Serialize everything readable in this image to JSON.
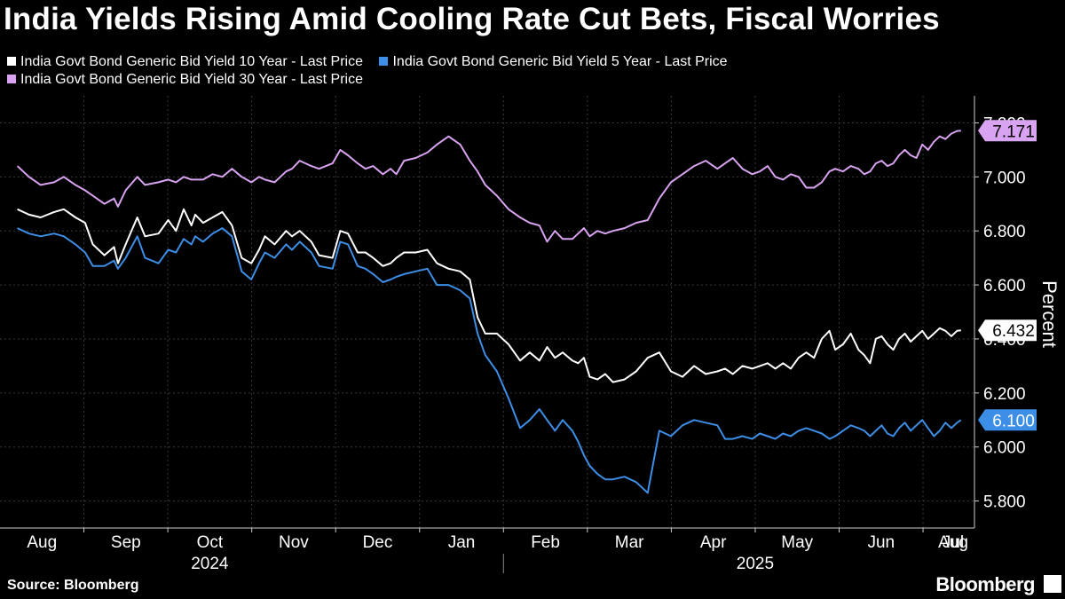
{
  "title": "India Yields Rising Amid Cooling Rate Cut Bets, Fiscal Worries",
  "source": "Source: Bloomberg",
  "brand": "Bloomberg",
  "chart_data": {
    "type": "line",
    "ylabel": "Percent",
    "ylim": [
      5.7,
      7.3
    ],
    "yticks": [
      5.8,
      6.0,
      6.2,
      6.4,
      6.6,
      6.8,
      7.0,
      7.2
    ],
    "ytick_labels": [
      "5.800",
      "6.000",
      "6.200",
      "6.400",
      "6.600",
      "6.800",
      "7.000",
      "7.200"
    ],
    "months": [
      "Aug",
      "Sep",
      "Oct",
      "Nov",
      "Dec",
      "Jan",
      "Feb",
      "Mar",
      "Apr",
      "May",
      "Jun",
      "Jul",
      "Aug"
    ],
    "years": [
      "2024",
      "2025"
    ],
    "grid": true,
    "series": [
      {
        "name": "India Govt Bond Generic Bid Yield 10 Year - Last Price",
        "color": "#ffffff",
        "last_value_label": "6.432",
        "t": [
          0,
          0.6,
          1.2,
          1.9,
          2.4,
          3.0,
          3.5,
          3.9,
          4.5,
          5.0,
          5.2,
          5.6,
          6.2,
          6.6,
          7.3,
          7.8,
          8.2,
          8.6,
          9.0,
          9.2,
          9.6,
          10.1,
          10.6,
          11.1,
          11.6,
          12.1,
          12.5,
          12.8,
          13.3,
          13.9,
          14.2,
          14.6,
          15.2,
          15.6,
          16.3,
          16.7,
          17.1,
          17.6,
          18.0,
          18.4,
          18.9,
          19.3,
          19.6,
          20.0,
          20.6,
          21.2,
          21.7,
          22.3,
          22.9,
          23.4,
          23.8,
          24.2,
          24.8,
          25.4,
          26.0,
          26.5,
          27.0,
          27.4,
          27.8,
          28.2,
          28.7,
          29.0,
          29.3,
          29.6,
          30.0,
          30.4,
          30.8,
          31.4,
          32.0,
          32.6,
          33.2,
          33.8,
          34.4,
          35.0,
          35.6,
          36.2,
          36.6,
          37.0,
          37.5,
          38.0,
          38.4,
          38.8,
          39.2,
          39.6,
          40.0,
          40.4,
          40.8,
          41.2,
          41.6,
          42.0,
          42.3,
          42.7,
          43.1,
          43.5,
          43.8,
          44.1,
          44.4,
          44.7,
          45.0,
          45.3,
          45.6,
          45.9,
          46.2,
          46.5,
          46.8,
          47.1,
          47.4,
          47.7,
          48.0,
          48.3,
          48.6,
          48.8
        ],
        "values": [
          6.88,
          6.86,
          6.85,
          6.87,
          6.88,
          6.85,
          6.83,
          6.75,
          6.71,
          6.74,
          6.68,
          6.75,
          6.85,
          6.78,
          6.79,
          6.84,
          6.8,
          6.88,
          6.82,
          6.86,
          6.83,
          6.85,
          6.87,
          6.82,
          6.7,
          6.68,
          6.73,
          6.78,
          6.75,
          6.8,
          6.78,
          6.8,
          6.76,
          6.71,
          6.7,
          6.8,
          6.79,
          6.72,
          6.72,
          6.7,
          6.67,
          6.68,
          6.7,
          6.72,
          6.72,
          6.73,
          6.68,
          6.66,
          6.65,
          6.62,
          6.48,
          6.42,
          6.42,
          6.38,
          6.32,
          6.35,
          6.32,
          6.37,
          6.33,
          6.35,
          6.32,
          6.31,
          6.33,
          6.26,
          6.25,
          6.27,
          6.24,
          6.25,
          6.28,
          6.33,
          6.35,
          6.28,
          6.26,
          6.3,
          6.27,
          6.28,
          6.29,
          6.27,
          6.3,
          6.29,
          6.3,
          6.31,
          6.29,
          6.31,
          6.29,
          6.33,
          6.35,
          6.33,
          6.4,
          6.43,
          6.36,
          6.38,
          6.42,
          6.36,
          6.34,
          6.31,
          6.4,
          6.41,
          6.38,
          6.36,
          6.4,
          6.42,
          6.39,
          6.41,
          6.43,
          6.4,
          6.42,
          6.44,
          6.43,
          6.41,
          6.43,
          6.432
        ]
      },
      {
        "name": "India Govt Bond Generic Bid Yield 5 Year - Last Price",
        "color": "#3d8ee6",
        "last_value_label": "6.100",
        "t": [
          0,
          0.6,
          1.2,
          1.9,
          2.4,
          3.0,
          3.5,
          3.9,
          4.5,
          5.0,
          5.2,
          5.6,
          6.2,
          6.6,
          7.3,
          7.8,
          8.2,
          8.6,
          9.0,
          9.2,
          9.6,
          10.1,
          10.6,
          11.1,
          11.6,
          12.1,
          12.5,
          12.8,
          13.3,
          13.9,
          14.2,
          14.6,
          15.2,
          15.6,
          16.3,
          16.7,
          17.1,
          17.6,
          18.0,
          18.4,
          18.9,
          19.3,
          19.6,
          20.0,
          20.6,
          21.2,
          21.7,
          22.3,
          22.9,
          23.4,
          23.8,
          24.2,
          24.8,
          25.4,
          26.0,
          26.5,
          27.0,
          27.4,
          27.8,
          28.2,
          28.7,
          29.0,
          29.3,
          29.6,
          30.0,
          30.4,
          30.8,
          31.4,
          32.0,
          32.6,
          33.2,
          33.8,
          34.4,
          35.0,
          35.6,
          36.2,
          36.6,
          37.0,
          37.5,
          38.0,
          38.4,
          38.8,
          39.2,
          39.6,
          40.0,
          40.4,
          40.8,
          41.2,
          41.6,
          42.0,
          42.3,
          42.7,
          43.1,
          43.5,
          43.8,
          44.1,
          44.4,
          44.7,
          45.0,
          45.3,
          45.6,
          45.9,
          46.2,
          46.5,
          46.8,
          47.1,
          47.4,
          47.7,
          48.0,
          48.3,
          48.6,
          48.8
        ],
        "values": [
          6.81,
          6.79,
          6.78,
          6.79,
          6.78,
          6.75,
          6.72,
          6.67,
          6.67,
          6.69,
          6.66,
          6.7,
          6.78,
          6.7,
          6.68,
          6.73,
          6.72,
          6.77,
          6.75,
          6.78,
          6.76,
          6.79,
          6.81,
          6.78,
          6.65,
          6.62,
          6.68,
          6.72,
          6.7,
          6.75,
          6.73,
          6.76,
          6.72,
          6.67,
          6.66,
          6.76,
          6.75,
          6.67,
          6.66,
          6.64,
          6.61,
          6.62,
          6.63,
          6.64,
          6.65,
          6.66,
          6.6,
          6.6,
          6.58,
          6.55,
          6.42,
          6.34,
          6.28,
          6.18,
          6.07,
          6.1,
          6.14,
          6.1,
          6.06,
          6.1,
          6.06,
          6.02,
          5.97,
          5.93,
          5.9,
          5.88,
          5.88,
          5.89,
          5.87,
          5.83,
          6.06,
          6.04,
          6.08,
          6.1,
          6.09,
          6.08,
          6.03,
          6.03,
          6.04,
          6.03,
          6.05,
          6.04,
          6.03,
          6.05,
          6.04,
          6.06,
          6.07,
          6.06,
          6.05,
          6.03,
          6.04,
          6.06,
          6.08,
          6.07,
          6.06,
          6.04,
          6.06,
          6.08,
          6.05,
          6.04,
          6.07,
          6.09,
          6.06,
          6.08,
          6.1,
          6.07,
          6.04,
          6.06,
          6.09,
          6.07,
          6.09,
          6.1
        ]
      },
      {
        "name": "India Govt Bond Generic Bid Yield 30 Year - Last Price",
        "color": "#d8a3f0",
        "last_value_label": "7.171",
        "t": [
          0,
          0.6,
          1.2,
          1.9,
          2.4,
          3.0,
          3.5,
          3.9,
          4.5,
          5.0,
          5.2,
          5.6,
          6.2,
          6.6,
          7.3,
          7.8,
          8.2,
          8.6,
          9.0,
          9.2,
          9.6,
          10.1,
          10.6,
          11.1,
          11.6,
          12.1,
          12.5,
          12.8,
          13.3,
          13.9,
          14.2,
          14.6,
          15.2,
          15.6,
          16.3,
          16.7,
          17.1,
          17.6,
          18.0,
          18.4,
          18.9,
          19.3,
          19.6,
          20.0,
          20.6,
          21.2,
          21.7,
          22.3,
          22.9,
          23.4,
          23.8,
          24.2,
          24.8,
          25.4,
          26.0,
          26.5,
          27.0,
          27.4,
          27.8,
          28.2,
          28.7,
          29.0,
          29.3,
          29.6,
          30.0,
          30.4,
          30.8,
          31.4,
          32.0,
          32.6,
          33.2,
          33.8,
          34.4,
          35.0,
          35.6,
          36.2,
          36.6,
          37.0,
          37.5,
          38.0,
          38.4,
          38.8,
          39.2,
          39.6,
          40.0,
          40.4,
          40.8,
          41.2,
          41.6,
          42.0,
          42.3,
          42.7,
          43.1,
          43.5,
          43.8,
          44.1,
          44.4,
          44.7,
          45.0,
          45.3,
          45.6,
          45.9,
          46.2,
          46.5,
          46.8,
          47.1,
          47.4,
          47.7,
          48.0,
          48.3,
          48.6,
          48.8
        ],
        "values": [
          7.04,
          7.0,
          6.97,
          6.98,
          7.0,
          6.97,
          6.95,
          6.93,
          6.9,
          6.92,
          6.89,
          6.95,
          7.0,
          6.97,
          6.98,
          6.99,
          6.98,
          7.0,
          6.99,
          6.99,
          6.99,
          7.01,
          7.0,
          7.03,
          7.0,
          6.98,
          7.0,
          6.99,
          6.98,
          7.02,
          7.03,
          7.06,
          7.04,
          7.03,
          7.05,
          7.1,
          7.08,
          7.05,
          7.03,
          7.04,
          7.01,
          7.03,
          7.01,
          7.06,
          7.07,
          7.09,
          7.12,
          7.15,
          7.12,
          7.06,
          7.02,
          6.97,
          6.93,
          6.88,
          6.85,
          6.83,
          6.82,
          6.76,
          6.8,
          6.77,
          6.77,
          6.79,
          6.81,
          6.78,
          6.8,
          6.79,
          6.8,
          6.81,
          6.83,
          6.84,
          6.92,
          6.98,
          7.01,
          7.04,
          7.06,
          7.03,
          7.05,
          7.07,
          7.03,
          7.01,
          7.02,
          7.04,
          7.0,
          6.99,
          7.01,
          7.0,
          6.96,
          6.96,
          6.98,
          7.02,
          7.03,
          7.02,
          7.04,
          7.03,
          7.01,
          7.02,
          7.05,
          7.06,
          7.04,
          7.05,
          7.08,
          7.1,
          7.08,
          7.07,
          7.12,
          7.1,
          7.13,
          7.15,
          7.14,
          7.16,
          7.17,
          7.171
        ]
      }
    ]
  }
}
